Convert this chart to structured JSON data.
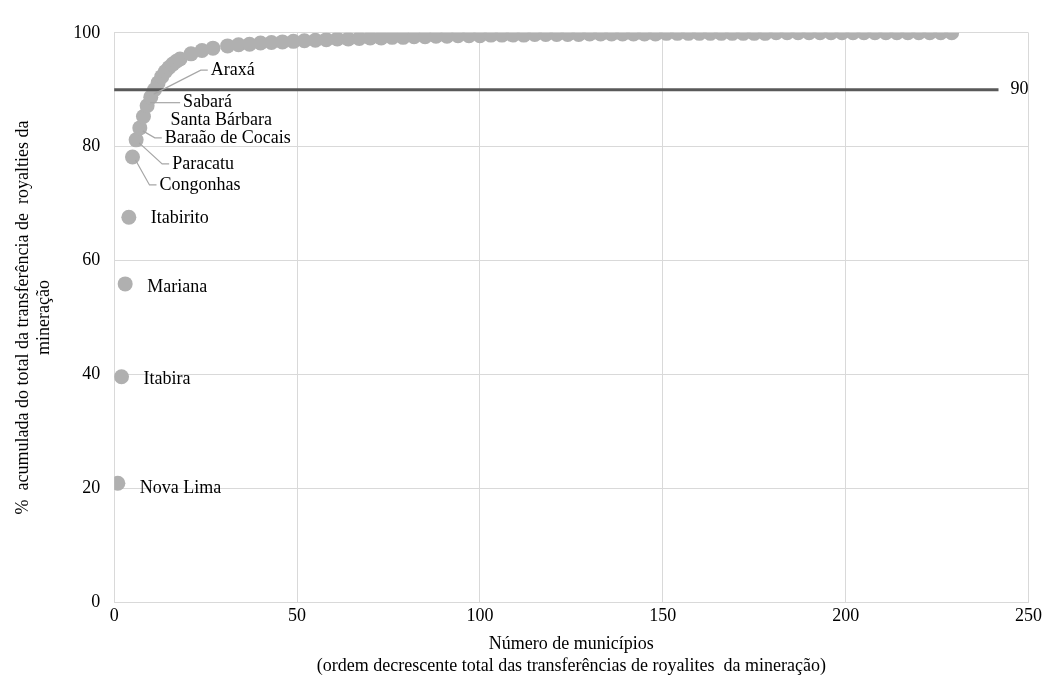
{
  "chart_data": {
    "type": "scatter",
    "xlabel": "Número de municípios\n(ordem decrescente total das transferências de royalites  da mineração)",
    "ylabel": "%  acumulada do total da transferência de  royalties da\nmineração",
    "x": [
      1,
      2,
      3,
      4,
      5,
      6,
      7,
      8,
      9,
      10,
      11,
      12,
      13,
      14,
      15,
      16,
      17,
      18,
      21,
      24,
      27,
      31,
      34,
      37,
      40,
      43,
      46,
      49,
      52,
      55,
      58,
      61,
      64,
      67,
      70,
      73,
      76,
      79,
      82,
      85,
      88,
      91,
      94,
      97,
      100,
      103,
      106,
      109,
      112,
      115,
      118,
      121,
      124,
      127,
      130,
      133,
      136,
      139,
      142,
      145,
      148,
      151,
      154,
      157,
      160,
      163,
      166,
      169,
      172,
      175,
      178,
      181,
      184,
      187,
      190,
      193,
      196,
      199,
      202,
      205,
      208,
      211,
      214,
      217,
      220,
      223,
      226,
      229
    ],
    "series": [
      {
        "color": "#b0b0b0",
        "values": [
          20.9,
          39.6,
          55.9,
          67.6,
          78.2,
          81.2,
          83.3,
          85.3,
          87.2,
          88.7,
          90.0,
          91.2,
          92.3,
          93.2,
          93.9,
          94.5,
          95.0,
          95.4,
          96.3,
          96.9,
          97.3,
          97.7,
          97.9,
          98.0,
          98.2,
          98.3,
          98.4,
          98.5,
          98.6,
          98.7,
          98.8,
          98.9,
          98.9,
          99.0,
          99.1,
          99.1,
          99.2,
          99.2,
          99.3,
          99.3,
          99.4,
          99.4,
          99.5,
          99.5,
          99.5,
          99.6,
          99.6,
          99.6,
          99.6,
          99.7,
          99.7,
          99.7,
          99.7,
          99.7,
          99.8,
          99.8,
          99.8,
          99.8,
          99.8,
          99.8,
          99.8,
          99.9,
          99.9,
          99.9,
          99.9,
          99.9,
          99.9,
          99.9,
          99.9,
          99.9,
          99.9,
          100,
          100,
          100,
          100,
          100,
          100,
          100,
          100,
          100,
          100,
          100,
          100,
          100,
          100,
          100,
          100,
          100
        ]
      }
    ],
    "xlim": [
      0,
      250
    ],
    "xticks": [
      0,
      50,
      100,
      150,
      200,
      250
    ],
    "ylim": [
      0,
      100
    ],
    "yticks": [
      0,
      20,
      40,
      60,
      80,
      100
    ],
    "grid": true,
    "marker": "circle",
    "legend": false,
    "ref_lines": [
      {
        "axis": "y",
        "value": 90,
        "label": "90",
        "color": "#595959"
      }
    ],
    "annotations": [
      {
        "text": "Nova Lima",
        "x": 1,
        "y": 20.9
      },
      {
        "text": "Itabira",
        "x": 2,
        "y": 39.6
      },
      {
        "text": "Mariana",
        "x": 3,
        "y": 55.9
      },
      {
        "text": "Itabirito",
        "x": 4,
        "y": 67.6
      },
      {
        "text": "Congonhas",
        "x": 5,
        "y": 78.2
      },
      {
        "text": "Paracatu",
        "x": 6,
        "y": 81.2
      },
      {
        "text": "Baraão de Cocais",
        "x": 7,
        "y": 83.3
      },
      {
        "text": "Santa Bárbara",
        "x": 8,
        "y": 85.3
      },
      {
        "text": "Sabará",
        "x": 9,
        "y": 87.2
      },
      {
        "text": "Araxá",
        "x": 10,
        "y": 88.7
      }
    ]
  }
}
